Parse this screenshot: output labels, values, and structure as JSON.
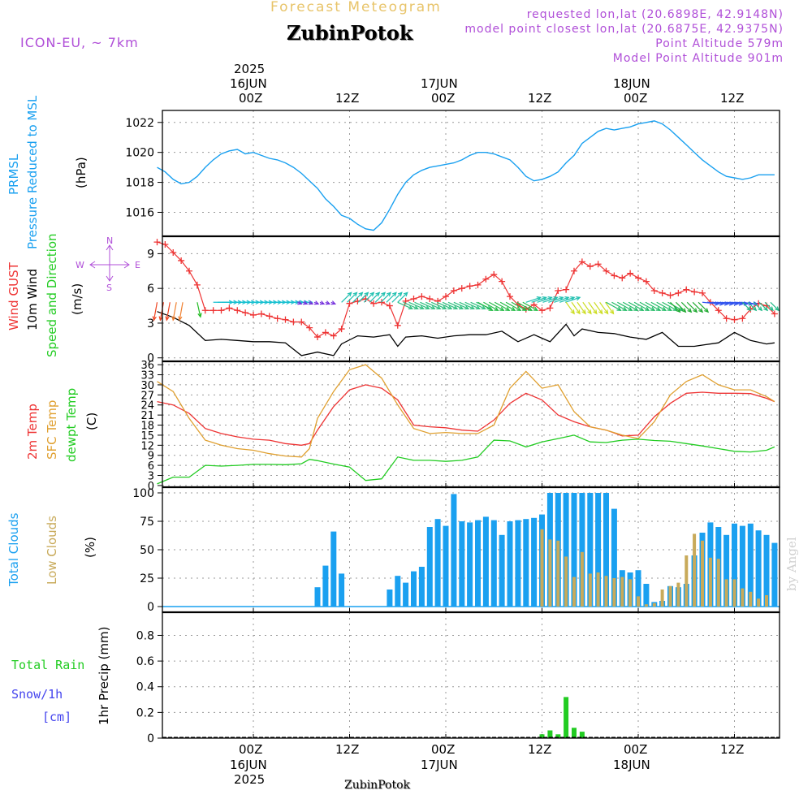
{
  "header": {
    "product_title": "Forecast Meteogram",
    "location": "ZubinPotok",
    "model": "ICON-EU, ~ 7km",
    "requested_point": "requested lon,lat (20.6898E, 42.9148N)",
    "closest_point": "model point closest lon,lat (20.6875E, 42.9375N)",
    "point_altitude": "Point Altitude 579m",
    "model_point_altitude": "Model Point Altitude 901m"
  },
  "time_axis": {
    "year": "2025",
    "top_dates": [
      "16JUN",
      "17JUN",
      "18JUN"
    ],
    "tick_labels": [
      "00Z",
      "12Z",
      "00Z",
      "12Z",
      "00Z",
      "12Z"
    ],
    "footer_location": "ZubinPotok",
    "watermark": "by Angel"
  },
  "panel_labels": {
    "pressure": [
      "PRMSL",
      "Pressure Reduced to MSL",
      "(hPa)"
    ],
    "wind": [
      "Wind GUST",
      "10m Wind",
      "Speed and Direction",
      "(m/s)"
    ],
    "compass": {
      "n": "N",
      "s": "S",
      "w": "W",
      "e": "E"
    },
    "temp": [
      "2m Temp",
      "SFC Temp",
      "dewpt Temp",
      "(C)"
    ],
    "clouds": [
      "Total Clouds",
      "Low Clouds",
      "(%)"
    ],
    "precip": [
      "Total  Rain",
      "Snow/1h",
      "[cm]",
      "1hr Precip (mm)"
    ]
  },
  "colors": {
    "pressure": "#19a0f0",
    "gust": "#ee3333",
    "wind": "#000000",
    "temp2m": "#ee3333",
    "sfc": "#e0a030",
    "dewpt": "#22cc22",
    "total_cloud": "#1aa0f0",
    "low_cloud": "#c8aa5a",
    "rain": "#22cc22",
    "purple": "#b04fd8",
    "snow": "#4444ee"
  },
  "chart_data": [
    {
      "type": "line",
      "title": "PRMSL Pressure Reduced to MSL",
      "ylabel": "(hPa)",
      "ylim": [
        1014.4,
        1022.8
      ],
      "yticks": [
        1016,
        1018,
        1020,
        1022
      ],
      "x_hours": [
        -12,
        -11,
        -10,
        -9,
        -8,
        -7,
        -6,
        -5,
        -4,
        -3,
        -2,
        -1,
        0,
        1,
        2,
        3,
        4,
        5,
        6,
        7,
        8,
        9,
        10,
        11,
        12,
        13,
        14,
        15,
        16,
        17,
        18,
        19,
        20,
        21,
        22,
        23,
        24,
        25,
        26,
        27,
        28,
        29,
        30,
        31,
        32,
        33,
        34,
        35,
        36,
        37,
        38,
        39,
        40,
        41,
        42,
        43,
        44,
        45,
        46,
        47,
        48,
        49,
        50,
        51,
        52,
        53,
        54,
        55,
        56,
        57,
        58,
        59,
        60,
        61,
        62,
        63,
        64,
        65
      ],
      "values": [
        1019.0,
        1018.7,
        1018.2,
        1017.9,
        1018.0,
        1018.4,
        1019.0,
        1019.5,
        1019.9,
        1020.1,
        1020.2,
        1019.9,
        1020.0,
        1019.8,
        1019.6,
        1019.5,
        1019.3,
        1019.0,
        1018.6,
        1018.1,
        1017.6,
        1016.9,
        1016.4,
        1015.8,
        1015.6,
        1015.2,
        1014.9,
        1014.8,
        1015.3,
        1016.2,
        1017.2,
        1018.0,
        1018.5,
        1018.8,
        1019.0,
        1019.1,
        1019.2,
        1019.3,
        1019.5,
        1019.8,
        1020.0,
        1020.0,
        1019.9,
        1019.7,
        1019.5,
        1019.0,
        1018.4,
        1018.1,
        1018.2,
        1018.4,
        1018.7,
        1019.3,
        1019.8,
        1020.6,
        1021.0,
        1021.4,
        1021.6,
        1021.5,
        1021.6,
        1021.7,
        1021.9,
        1022.0,
        1022.1,
        1021.9,
        1021.5,
        1021.0,
        1020.5,
        1020.0,
        1019.5,
        1019.1,
        1018.7,
        1018.4,
        1018.3,
        1018.2,
        1018.3,
        1018.5,
        1018.5,
        1018.5
      ]
    },
    {
      "type": "line",
      "title": "Wind GUST / 10m Wind",
      "ylabel": "(m/s)",
      "ylim": [
        -0.3,
        10.5
      ],
      "yticks": [
        0,
        3,
        6,
        9
      ],
      "series": [
        {
          "name": "Wind GUST",
          "x_hours": [
            -12,
            -11,
            -10,
            -9,
            -8,
            -7,
            -6,
            -5,
            -4,
            -3,
            -2,
            -1,
            0,
            1,
            2,
            3,
            4,
            5,
            6,
            7,
            8,
            9,
            10,
            11,
            12,
            13,
            14,
            15,
            16,
            17,
            18,
            19,
            20,
            21,
            22,
            23,
            24,
            25,
            26,
            27,
            28,
            29,
            30,
            31,
            32,
            33,
            34,
            35,
            36,
            37,
            38,
            39,
            40,
            41,
            42,
            43,
            44,
            45,
            46,
            47,
            48,
            49,
            50,
            51,
            52,
            53,
            54,
            55,
            56,
            57,
            58,
            59,
            60,
            61,
            62,
            63,
            64,
            65
          ],
          "values": [
            10.0,
            9.8,
            9.1,
            8.4,
            7.5,
            6.3,
            4.1,
            4.1,
            4.1,
            4.3,
            4.1,
            3.9,
            3.7,
            3.8,
            3.6,
            3.4,
            3.3,
            3.1,
            3.1,
            2.6,
            1.8,
            2.2,
            1.9,
            2.5,
            4.7,
            4.9,
            5.1,
            4.7,
            4.8,
            4.5,
            2.8,
            4.9,
            5.1,
            5.3,
            5.1,
            4.9,
            5.3,
            5.8,
            6.0,
            6.2,
            6.3,
            6.8,
            7.2,
            6.6,
            5.3,
            4.6,
            4.2,
            4.6,
            4.1,
            4.3,
            5.8,
            5.9,
            7.5,
            8.3,
            7.9,
            8.1,
            7.5,
            7.1,
            6.9,
            7.3,
            6.9,
            6.6,
            5.8,
            5.6,
            5.4,
            5.6,
            5.9,
            5.7,
            5.6,
            4.8,
            4.1,
            3.4,
            3.3,
            3.4,
            4.2,
            4.7,
            4.5,
            3.8
          ]
        },
        {
          "name": "10m Wind",
          "x_hours": [
            -12,
            -10,
            -8,
            -6,
            -4,
            -2,
            0,
            2,
            4,
            6,
            8,
            10,
            11,
            13,
            15,
            17,
            18,
            19,
            21,
            23,
            25,
            27,
            29,
            31,
            33,
            35,
            36,
            37,
            39,
            40,
            41,
            43,
            45,
            47,
            49,
            51,
            53,
            55,
            56,
            58,
            60,
            62,
            64,
            65
          ],
          "values": [
            4.0,
            3.5,
            2.8,
            1.5,
            1.6,
            1.5,
            1.4,
            1.4,
            1.3,
            0.2,
            0.5,
            0.2,
            1.2,
            1.9,
            1.8,
            2.0,
            1.0,
            1.8,
            1.9,
            1.7,
            1.9,
            2.0,
            2.0,
            2.3,
            1.4,
            2.0,
            1.7,
            1.4,
            2.9,
            1.9,
            2.5,
            2.2,
            2.1,
            1.8,
            1.6,
            2.2,
            1.0,
            1.0,
            1.1,
            1.3,
            2.2,
            1.5,
            1.2,
            1.3
          ]
        }
      ],
      "wind_direction_arrows": "colored arrows along ~4.8 m/s line: orange/red pointing south early, green/teal/cyan mid-period, purple/blue near 08Z-10Z 16JUN and 12Z 18JUN, yellow near 15Z 17JUN"
    },
    {
      "type": "line",
      "title": "2m Temp / SFC Temp / dewpt Temp",
      "ylabel": "(C)",
      "ylim": [
        -0.5,
        37
      ],
      "yticks": [
        0,
        3,
        6,
        9,
        12,
        15,
        18,
        21,
        24,
        27,
        30,
        33,
        36
      ],
      "x_hours": [
        -12,
        -10,
        -8,
        -6,
        -4,
        -2,
        0,
        2,
        4,
        6,
        7,
        8,
        10,
        12,
        14,
        16,
        18,
        20,
        22,
        24,
        26,
        28,
        30,
        32,
        34,
        36,
        38,
        40,
        42,
        44,
        46,
        48,
        50,
        52,
        54,
        56,
        58,
        60,
        62,
        64,
        65
      ],
      "series": [
        {
          "name": "2m Temp",
          "values": [
            25,
            24,
            21.5,
            17,
            15.5,
            14.5,
            13.8,
            13.5,
            12.5,
            12.0,
            12.5,
            16.5,
            23.5,
            28.5,
            30,
            29,
            25.5,
            18,
            17.5,
            17.2,
            16.5,
            16.2,
            19.5,
            24.5,
            27.5,
            25.5,
            21,
            19,
            17.5,
            16.5,
            14.8,
            15.0,
            20.5,
            24.5,
            27.5,
            27.8,
            27.5,
            27.5,
            27.4,
            26.0,
            25.0
          ]
        },
        {
          "name": "SFC Temp",
          "values": [
            31,
            28,
            20,
            13.5,
            12.0,
            11.0,
            10.5,
            9.5,
            8.8,
            8.5,
            11.0,
            20,
            28,
            34.5,
            36,
            32,
            24,
            17,
            15.5,
            15.8,
            15.5,
            15.5,
            18,
            29,
            34,
            29,
            30,
            22,
            17.5,
            16.5,
            15.0,
            14.0,
            19,
            27,
            31,
            33,
            30,
            28.5,
            28.5,
            26.5,
            25.0
          ]
        },
        {
          "name": "dewpt Temp",
          "values": [
            0.5,
            2.5,
            2.5,
            6,
            5.8,
            6.0,
            6.3,
            6.3,
            6.2,
            6.5,
            7.8,
            7.4,
            6.4,
            5.5,
            1.5,
            2.0,
            8.5,
            7.5,
            7.5,
            7.2,
            7.5,
            8.5,
            13.5,
            13.3,
            11.5,
            13.0,
            14.0,
            15.0,
            13.0,
            12.8,
            13.5,
            13.8,
            13.4,
            13.2,
            12.5,
            11.8,
            11.0,
            10.2,
            10.0,
            10.5,
            11.5
          ]
        }
      ]
    },
    {
      "type": "bar",
      "title": "Total Clouds / Low Clouds",
      "ylabel": "(%)",
      "ylim": [
        -5,
        105
      ],
      "yticks": [
        0,
        25,
        50,
        75,
        100
      ],
      "series": [
        {
          "name": "Total Clouds",
          "x_hours": [
            8,
            9,
            10,
            11,
            17,
            18,
            19,
            20,
            21,
            22,
            23,
            24,
            25,
            26,
            27,
            28,
            29,
            30,
            31,
            32,
            33,
            34,
            35,
            36,
            37,
            38,
            39,
            40,
            41,
            42,
            43,
            44,
            45,
            46,
            47,
            48,
            49,
            50,
            51,
            52,
            53,
            54,
            55,
            56,
            57,
            58,
            59,
            60,
            61,
            62,
            63,
            64,
            65
          ],
          "values": [
            17,
            36,
            66,
            29,
            15,
            27,
            21,
            31,
            35,
            70,
            77,
            71,
            99,
            75,
            74,
            76,
            79,
            76,
            63,
            75,
            76,
            77,
            78,
            81,
            100,
            100,
            100,
            100,
            100,
            100,
            100,
            100,
            86,
            32,
            30,
            32,
            20,
            4,
            5,
            18,
            17,
            20,
            45,
            65,
            74,
            70,
            63,
            73,
            71,
            73,
            67,
            63,
            56
          ]
        },
        {
          "name": "Low Clouds",
          "x_hours": [
            36,
            37,
            38,
            39,
            40,
            41,
            42,
            43,
            44,
            45,
            46,
            47,
            48,
            49,
            50,
            51,
            52,
            53,
            54,
            55,
            56,
            57,
            58,
            59,
            60,
            61,
            62,
            63,
            64
          ],
          "values": [
            68,
            59,
            58,
            44,
            26,
            48,
            29,
            30,
            27,
            25,
            26,
            24,
            9,
            2,
            3,
            15,
            18,
            21,
            45,
            64,
            58,
            43,
            42,
            24,
            24,
            16,
            13,
            7,
            10
          ]
        }
      ]
    },
    {
      "type": "bar",
      "title": "1hr Precip",
      "ylabel": "1hr Precip (mm)",
      "ylim": [
        0,
        0.98
      ],
      "yticks": [
        0,
        0.2,
        0.4,
        0.6,
        0.8
      ],
      "x_hours": [
        36,
        37,
        38,
        39,
        40,
        41
      ],
      "values": [
        0.03,
        0.06,
        0.03,
        0.32,
        0.08,
        0.05
      ]
    }
  ]
}
